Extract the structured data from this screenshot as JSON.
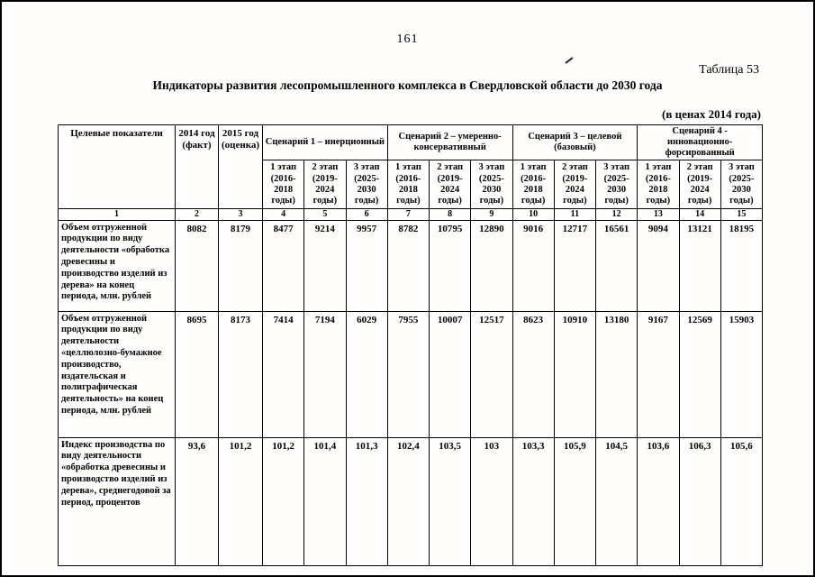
{
  "page": {
    "number": "161",
    "table_label": "Таблица 53",
    "title": "Индикаторы развития лесопромышленного комплекса в Свердловской области до 2030 года",
    "price_note": "(в ценах 2014 года)"
  },
  "table": {
    "col_indicator": "Целевые показатели",
    "col_2014": "2014 год (факт)",
    "col_2015": "2015 год (оценка)",
    "scenarios": [
      "Сценарий 1 – инерционный",
      "Сценарий 2 – умеренно-консервативный",
      "Сценарий 3 – целевой (базовый)",
      "Сценарий 4 - инновационно-форсированный"
    ],
    "stages": [
      "1 этап (2016-2018 годы)",
      "2 этап (2019-2024 годы)",
      "3 этап (2025-2030 годы)"
    ],
    "column_numbers": [
      "1",
      "2",
      "3",
      "4",
      "5",
      "6",
      "7",
      "8",
      "9",
      "10",
      "11",
      "12",
      "13",
      "14",
      "15"
    ],
    "rows": [
      {
        "indicator": "Объем отгруженной продукции по виду деятельности «обработка древесины и производство изделий из дерева» на конец периода, млн. рублей",
        "values": [
          "8082",
          "8179",
          "8477",
          "9214",
          "9957",
          "8782",
          "10795",
          "12890",
          "9016",
          "12717",
          "16561",
          "9094",
          "13121",
          "18195"
        ]
      },
      {
        "indicator": "Объем отгруженной продукции по виду деятельности «целлюлозно-бумажное производство, издательская и полиграфическая деятельность» на конец периода, млн. рублей",
        "values": [
          "8695",
          "8173",
          "7414",
          "7194",
          "6029",
          "7955",
          "10007",
          "12517",
          "8623",
          "10910",
          "13180",
          "9167",
          "12569",
          "15903"
        ]
      },
      {
        "indicator": "Индекс производства по виду деятельности «обработка древесины и производство изделий из дерева», среднегодовой за период, процентов",
        "values": [
          "93,6",
          "101,2",
          "101,2",
          "101,4",
          "101,3",
          "102,4",
          "103,5",
          "103",
          "103,3",
          "105,9",
          "104,5",
          "103,6",
          "106,3",
          "105,6"
        ]
      }
    ]
  }
}
